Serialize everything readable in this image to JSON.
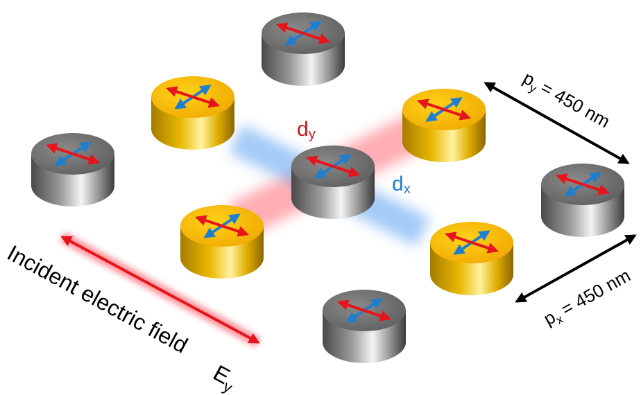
{
  "labels": {
    "py": {
      "symbol": "p",
      "subscript": "y",
      "text": "= 450 nm"
    },
    "px": {
      "symbol": "p",
      "subscript": "x",
      "text": "= 450 nm"
    },
    "dy": {
      "symbol": "d",
      "subscript": "y"
    },
    "dx": {
      "symbol": "d",
      "subscript": "x"
    },
    "field": {
      "text": "Incident electric field",
      "symbol": "E",
      "subscript": "y"
    }
  }
}
